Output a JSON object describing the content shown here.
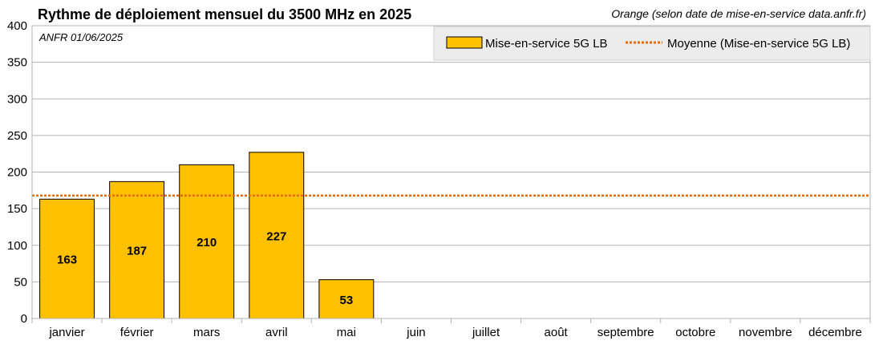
{
  "chart_data": {
    "type": "bar",
    "title": "Rythme de déploiement mensuel du 3500 MHz en 2025",
    "subtitle": "Orange (selon date de mise-en-service data.anfr.fr)",
    "note": "ANFR 01/06/2025",
    "categories": [
      "janvier",
      "février",
      "mars",
      "avril",
      "mai",
      "juin",
      "juillet",
      "août",
      "septembre",
      "octobre",
      "novembre",
      "décembre"
    ],
    "series": [
      {
        "name": "Mise-en-service 5G LB",
        "values": [
          163,
          187,
          210,
          227,
          53,
          null,
          null,
          null,
          null,
          null,
          null,
          null
        ],
        "color": "#FFC000"
      }
    ],
    "average": {
      "name": "Moyenne (Mise-en-service 5G LB)",
      "value": 168,
      "color": "#E46C0A"
    },
    "ylim": [
      0,
      400
    ],
    "yticks": [
      0,
      50,
      100,
      150,
      200,
      250,
      300,
      350,
      400
    ],
    "grid": true,
    "legend_position": "top-right",
    "xlabel": "",
    "ylabel": ""
  }
}
